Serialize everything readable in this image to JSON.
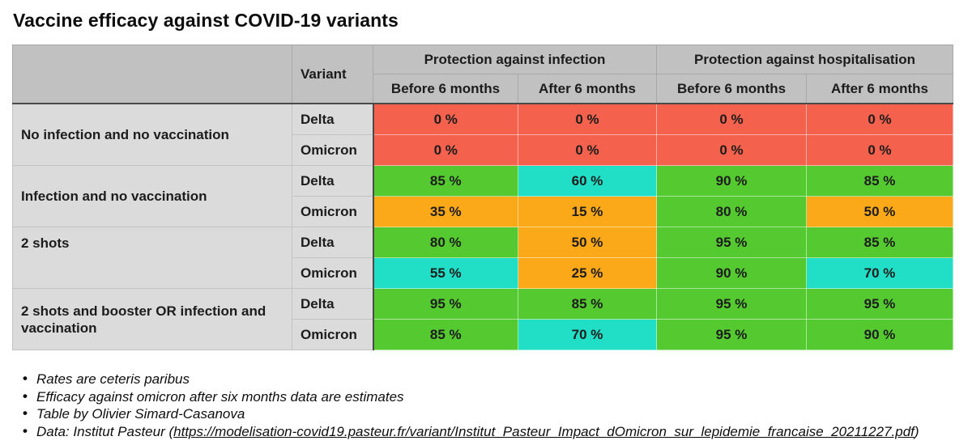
{
  "title": "Vaccine efficacy against COVID-19 variants",
  "colors": {
    "red": "#f4614d",
    "green": "#55ca30",
    "cyan": "#21dfc6",
    "orange": "#fba819",
    "header_bg": "#c1c1c1",
    "stub_bg": "#dbdbdb",
    "divider": "#4a4a4a"
  },
  "chart_data": {
    "type": "table",
    "title": "Vaccine efficacy against COVID-19 variants",
    "variant_header": "Variant",
    "group_headers": [
      "Protection against infection",
      "Protection against hospitalisation"
    ],
    "sub_headers": [
      "Before 6 months",
      "After 6 months",
      "Before 6 months",
      "After 6 months"
    ],
    "unit": "%",
    "groups": [
      {
        "label": "No infection and no vaccination",
        "rows": [
          {
            "variant": "Delta",
            "values": [
              "0 %",
              "0 %",
              "0 %",
              "0 %"
            ],
            "numeric": [
              0,
              0,
              0,
              0
            ],
            "colors": [
              "red",
              "red",
              "red",
              "red"
            ]
          },
          {
            "variant": "Omicron",
            "values": [
              "0 %",
              "0 %",
              "0 %",
              "0 %"
            ],
            "numeric": [
              0,
              0,
              0,
              0
            ],
            "colors": [
              "red",
              "red",
              "red",
              "red"
            ]
          }
        ]
      },
      {
        "label": "Infection and no vaccination",
        "rows": [
          {
            "variant": "Delta",
            "values": [
              "85 %",
              "60 %",
              "90 %",
              "85 %"
            ],
            "numeric": [
              85,
              60,
              90,
              85
            ],
            "colors": [
              "green",
              "cyan",
              "green",
              "green"
            ]
          },
          {
            "variant": "Omicron",
            "values": [
              "35 %",
              "15 %",
              "80 %",
              "50 %"
            ],
            "numeric": [
              35,
              15,
              80,
              50
            ],
            "colors": [
              "orange",
              "orange",
              "green",
              "orange"
            ]
          }
        ]
      },
      {
        "label": "2 shots",
        "rows": [
          {
            "variant": "Delta",
            "values": [
              "80 %",
              "50 %",
              "95 %",
              "85 %"
            ],
            "numeric": [
              80,
              50,
              95,
              85
            ],
            "colors": [
              "green",
              "orange",
              "green",
              "green"
            ]
          },
          {
            "variant": "Omicron",
            "values": [
              "55 %",
              "25 %",
              "90 %",
              "70 %"
            ],
            "numeric": [
              55,
              25,
              90,
              70
            ],
            "colors": [
              "cyan",
              "orange",
              "green",
              "cyan"
            ]
          }
        ]
      },
      {
        "label": "2 shots and booster OR infection and vaccination",
        "rows": [
          {
            "variant": "Delta",
            "values": [
              "95 %",
              "85 %",
              "95 %",
              "95 %"
            ],
            "numeric": [
              95,
              85,
              95,
              95
            ],
            "colors": [
              "green",
              "green",
              "green",
              "green"
            ]
          },
          {
            "variant": "Omicron",
            "values": [
              "85 %",
              "70 %",
              "95 %",
              "90 %"
            ],
            "numeric": [
              85,
              70,
              95,
              90
            ],
            "colors": [
              "green",
              "cyan",
              "green",
              "green"
            ]
          }
        ]
      }
    ]
  },
  "notes": [
    {
      "text": "Rates are ceteris paribus"
    },
    {
      "text": "Efficacy against omicron after six months data are estimates"
    },
    {
      "text": "Table by Olivier Simard-Casanova"
    },
    {
      "prefix": "Data: Institut Pasteur (",
      "link": "https://modelisation-covid19.pasteur.fr/variant/Institut_Pasteur_Impact_dOmicron_sur_lepidemie_francaise_20211227.pdf",
      "suffix": ")"
    }
  ]
}
